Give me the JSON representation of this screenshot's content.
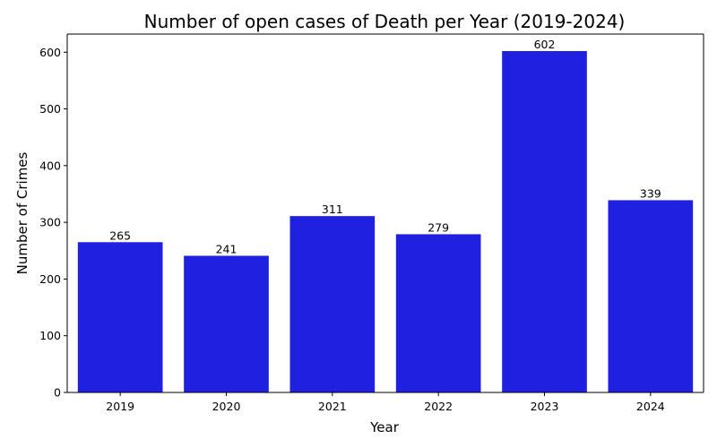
{
  "chart_data": {
    "type": "bar",
    "title": "Number of open cases of Death per Year (2019-2024)",
    "xlabel": "Year",
    "ylabel": "Number of Crimes",
    "categories": [
      "2019",
      "2020",
      "2021",
      "2022",
      "2023",
      "2024"
    ],
    "values": [
      265,
      241,
      311,
      279,
      602,
      339
    ],
    "data_labels": [
      "265",
      "241",
      "311",
      "279",
      "602",
      "339"
    ],
    "ylim": [
      0,
      632
    ],
    "yticks": [
      0,
      100,
      200,
      300,
      400,
      500,
      600
    ],
    "bar_color": "#2020e0",
    "grid": false,
    "legend": "none"
  }
}
